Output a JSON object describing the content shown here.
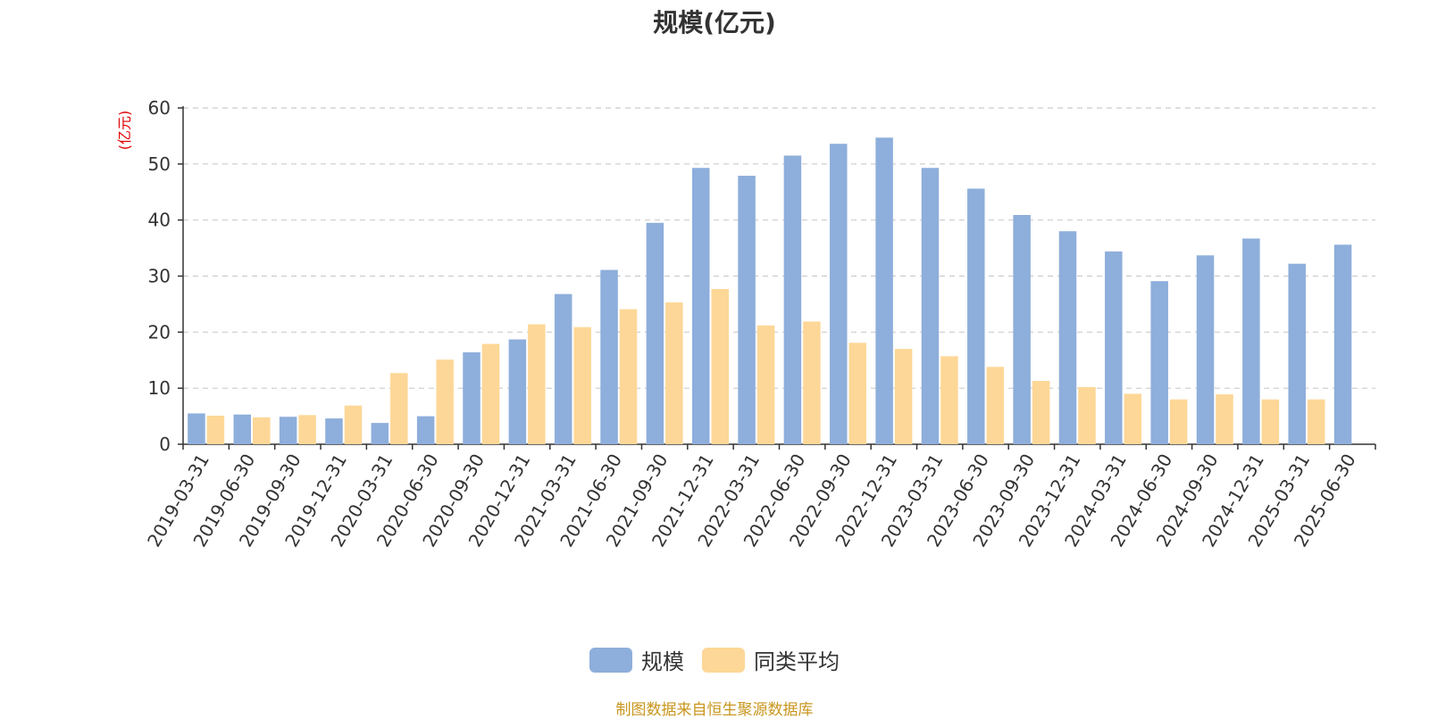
{
  "chart_data": {
    "type": "bar",
    "title": "规模(亿元)",
    "y_unit_label": "(亿元)",
    "ylim": [
      0,
      60
    ],
    "yticks": [
      0,
      10,
      20,
      30,
      40,
      50,
      60
    ],
    "grid": true,
    "legend_position": "bottom",
    "categories": [
      "2019-03-31",
      "2019-06-30",
      "2019-09-30",
      "2019-12-31",
      "2020-03-31",
      "2020-06-30",
      "2020-09-30",
      "2020-12-31",
      "2021-03-31",
      "2021-06-30",
      "2021-09-30",
      "2021-12-31",
      "2022-03-31",
      "2022-06-30",
      "2022-09-30",
      "2022-12-31",
      "2023-03-31",
      "2023-06-30",
      "2023-09-30",
      "2023-12-31",
      "2024-03-31",
      "2024-06-30",
      "2024-09-30",
      "2024-12-31",
      "2025-03-31",
      "2025-06-30"
    ],
    "series": [
      {
        "name": "规模",
        "color": "#8eaedb",
        "values": [
          5.5,
          5.3,
          4.9,
          4.6,
          3.8,
          5.0,
          16.4,
          18.7,
          26.8,
          31.1,
          39.5,
          49.3,
          47.9,
          51.5,
          53.6,
          54.7,
          49.3,
          45.6,
          40.9,
          38.0,
          34.4,
          29.1,
          33.7,
          36.7,
          32.2,
          35.6
        ]
      },
      {
        "name": "同类平均",
        "color": "#fdd797",
        "values": [
          5.1,
          4.8,
          5.2,
          6.9,
          12.7,
          15.1,
          17.9,
          21.4,
          20.9,
          24.1,
          25.3,
          27.7,
          21.2,
          21.9,
          18.1,
          17.0,
          15.7,
          13.8,
          11.3,
          10.2,
          9.0,
          8.0,
          8.9,
          8.0,
          8.0,
          null
        ]
      }
    ]
  },
  "source_text": "制图数据来自恒生聚源数据库",
  "colors": {
    "axis": "#333333",
    "grid": "#cccccc",
    "unit_label": "#e00000",
    "source_text": "#c8961e"
  }
}
